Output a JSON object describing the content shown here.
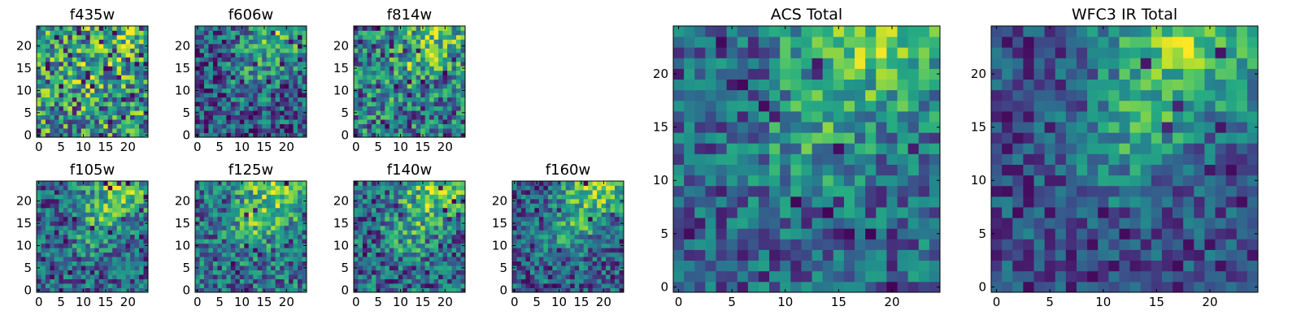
{
  "figure": {
    "colormap": "viridis",
    "colors": [
      "#440154",
      "#3b528b",
      "#21918c",
      "#5ec962",
      "#fde725"
    ]
  },
  "chart_data": [
    {
      "id": "f435w",
      "type": "heatmap",
      "title": "f435w",
      "grid_size": 25,
      "xticks": [
        0,
        5,
        10,
        15,
        20
      ],
      "yticks": [
        0,
        5,
        10,
        15,
        20
      ],
      "xlim": [
        0,
        24
      ],
      "ylim": [
        0,
        24
      ],
      "grid": false,
      "legend": "none"
    },
    {
      "id": "f606w",
      "type": "heatmap",
      "title": "f606w",
      "grid_size": 25,
      "xticks": [
        0,
        5,
        10,
        15,
        20
      ],
      "yticks": [
        0,
        5,
        10,
        15,
        20
      ],
      "xlim": [
        0,
        24
      ],
      "ylim": [
        0,
        24
      ],
      "grid": false,
      "legend": "none"
    },
    {
      "id": "f814w",
      "type": "heatmap",
      "title": "f814w",
      "grid_size": 25,
      "xticks": [
        0,
        5,
        10,
        15,
        20
      ],
      "yticks": [
        0,
        5,
        10,
        15,
        20
      ],
      "xlim": [
        0,
        24
      ],
      "ylim": [
        0,
        24
      ],
      "grid": false,
      "legend": "none"
    },
    {
      "id": "f105w",
      "type": "heatmap",
      "title": "f105w",
      "grid_size": 25,
      "xticks": [
        0,
        5,
        10,
        15,
        20
      ],
      "yticks": [
        0,
        5,
        10,
        15,
        20
      ],
      "xlim": [
        0,
        24
      ],
      "ylim": [
        0,
        24
      ],
      "grid": false,
      "legend": "none"
    },
    {
      "id": "f125w",
      "type": "heatmap",
      "title": "f125w",
      "grid_size": 25,
      "xticks": [
        0,
        5,
        10,
        15,
        20
      ],
      "yticks": [
        0,
        5,
        10,
        15,
        20
      ],
      "xlim": [
        0,
        24
      ],
      "ylim": [
        0,
        24
      ],
      "grid": false,
      "legend": "none"
    },
    {
      "id": "f140w",
      "type": "heatmap",
      "title": "f140w",
      "grid_size": 25,
      "xticks": [
        0,
        5,
        10,
        15,
        20
      ],
      "yticks": [
        0,
        5,
        10,
        15,
        20
      ],
      "xlim": [
        0,
        24
      ],
      "ylim": [
        0,
        24
      ],
      "grid": false,
      "legend": "none"
    },
    {
      "id": "f160w",
      "type": "heatmap",
      "title": "f160w",
      "grid_size": 25,
      "xticks": [
        0,
        5,
        10,
        15,
        20
      ],
      "yticks": [
        0,
        5,
        10,
        15,
        20
      ],
      "xlim": [
        0,
        24
      ],
      "ylim": [
        0,
        24
      ],
      "grid": false,
      "legend": "none"
    },
    {
      "id": "acs_total",
      "type": "heatmap",
      "title": "ACS Total",
      "grid_size": 25,
      "xticks": [
        0,
        5,
        10,
        15,
        20
      ],
      "yticks": [
        0,
        5,
        10,
        15,
        20
      ],
      "xlim": [
        0,
        24
      ],
      "ylim": [
        0,
        24
      ],
      "grid": false,
      "legend": "none"
    },
    {
      "id": "wfc3_ir_total",
      "type": "heatmap",
      "title": "WFC3 IR Total",
      "grid_size": 25,
      "xticks": [
        0,
        5,
        10,
        15,
        20
      ],
      "yticks": [
        0,
        5,
        10,
        15,
        20
      ],
      "xlim": [
        0,
        24
      ],
      "ylim": [
        0,
        24
      ],
      "grid": false,
      "legend": "none"
    }
  ]
}
